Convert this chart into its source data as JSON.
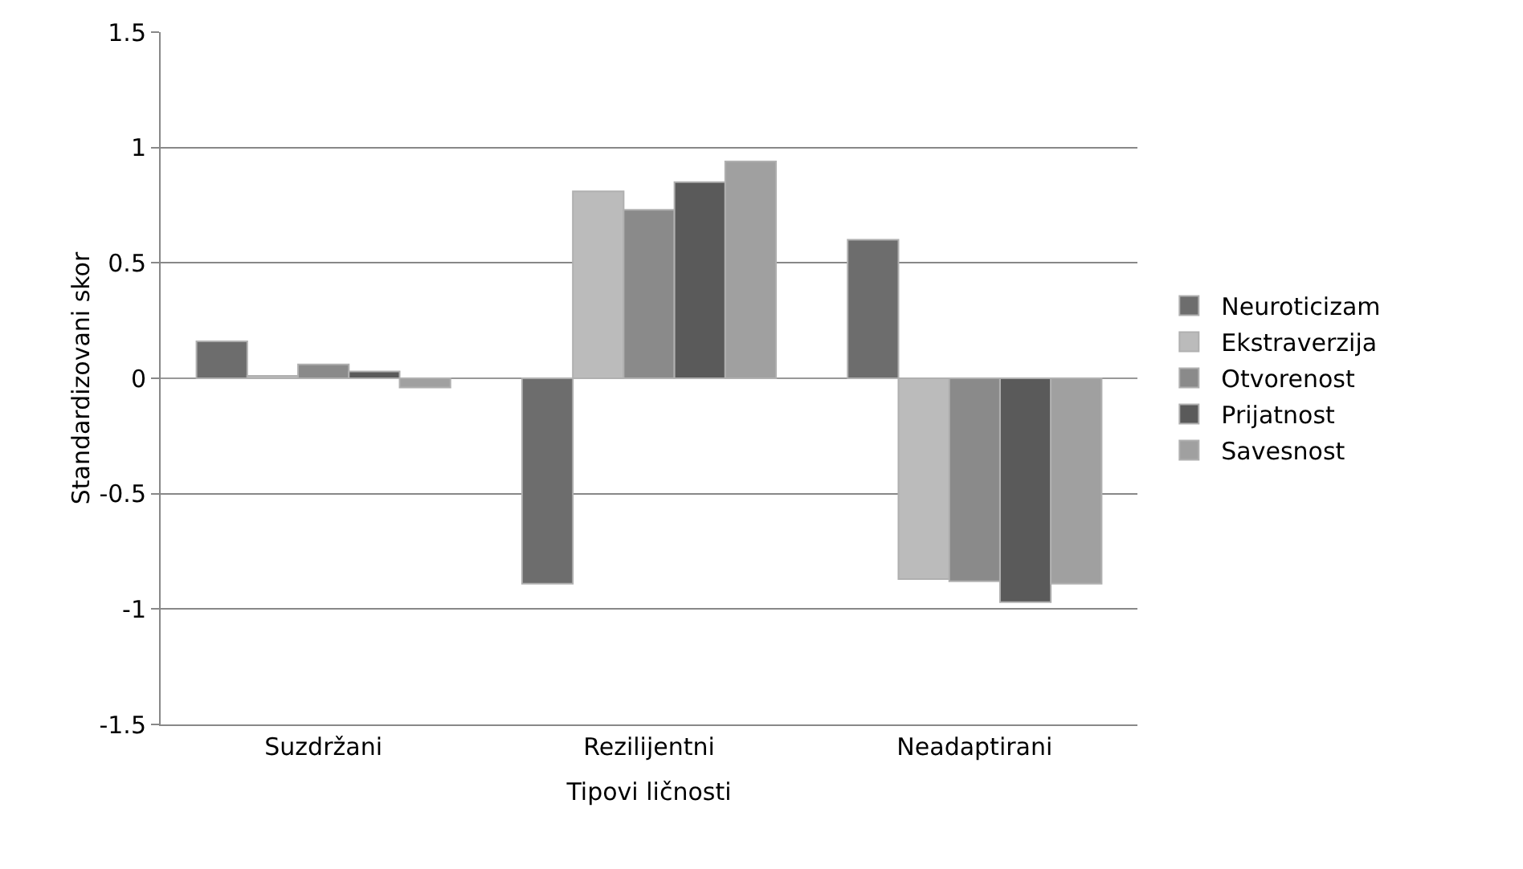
{
  "chart_data": {
    "type": "bar",
    "xlabel": "Tipovi ličnosti",
    "ylabel": "Standardizovani skor",
    "categories": [
      "Suzdržani",
      "Rezilijentni",
      "Neadaptirani"
    ],
    "series": [
      {
        "name": "Neuroticizam",
        "color": "#6d6d6d",
        "values": [
          0.16,
          -0.89,
          0.6
        ]
      },
      {
        "name": "Ekstraverzija",
        "color": "#bbbbbb",
        "values": [
          0.01,
          0.81,
          -0.87
        ]
      },
      {
        "name": "Otvorenost",
        "color": "#8a8a8a",
        "values": [
          0.06,
          0.73,
          -0.88
        ]
      },
      {
        "name": "Prijatnost",
        "color": "#5a5a5a",
        "values": [
          0.03,
          0.85,
          -0.97
        ]
      },
      {
        "name": "Savesnost",
        "color": "#a0a0a0",
        "values": [
          -0.04,
          0.94,
          -0.89
        ]
      }
    ],
    "ylim": [
      -1.5,
      1.5
    ],
    "yticks": [
      -1.5,
      -1,
      -0.5,
      0,
      0.5,
      1,
      1.5
    ],
    "grid": "y",
    "legend": "right"
  }
}
